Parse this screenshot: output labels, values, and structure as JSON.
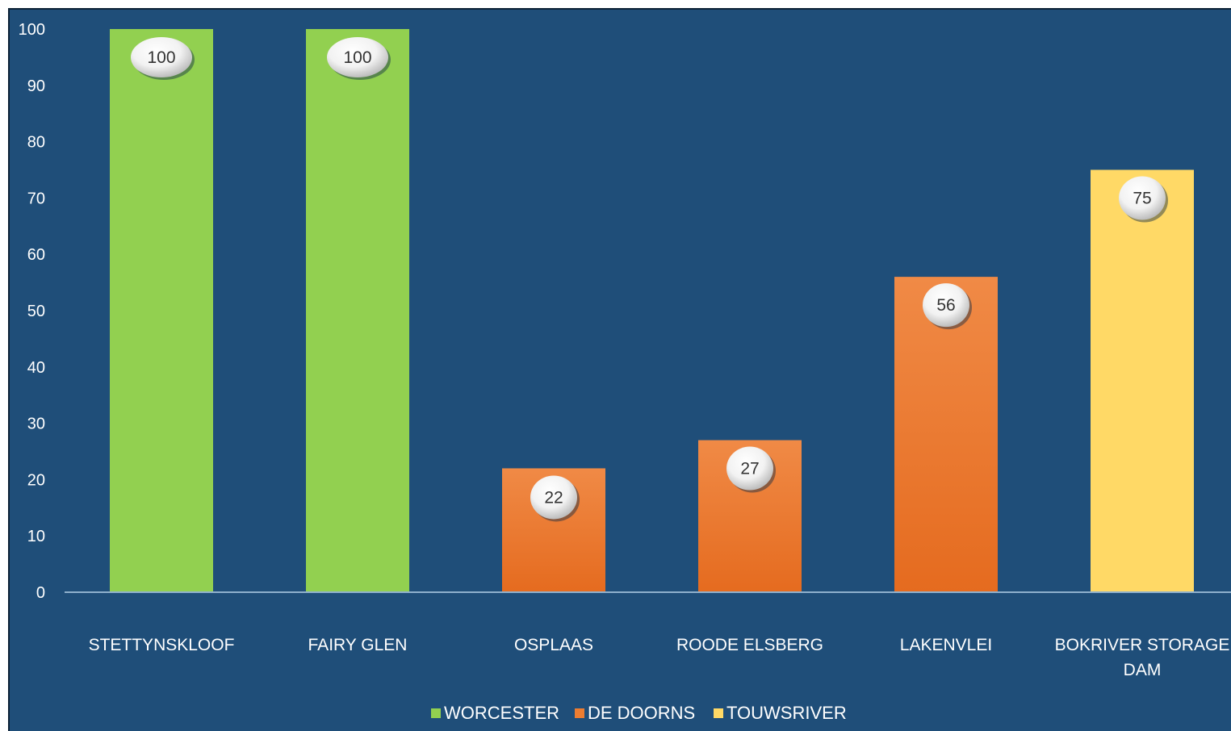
{
  "chart_data": {
    "type": "bar",
    "categories": [
      "STETTYNSKLOOF",
      "FAIRY GLEN",
      "OSPLAAS",
      "ROODE ELSBERG",
      "LAKENVLEI",
      "BOKRIVER STORAGE DAM"
    ],
    "category_lines": [
      [
        "STETTYNSKLOOF"
      ],
      [
        "FAIRY GLEN"
      ],
      [
        "OSPLAAS"
      ],
      [
        "ROODE ELSBERG"
      ],
      [
        "LAKENVLEI"
      ],
      [
        "BOKRIVER STORAGE",
        "DAM"
      ]
    ],
    "values": [
      100,
      100,
      22,
      27,
      56,
      75
    ],
    "data_labels": [
      "100",
      "100",
      "22",
      "27",
      "56",
      "75"
    ],
    "bar_groups": [
      "WORCESTER",
      "WORCESTER",
      "DE DOORNS",
      "DE DOORNS",
      "DE DOORNS",
      "TOUWSRIVER"
    ],
    "series": [
      {
        "name": "WORCESTER",
        "color": "#92d050"
      },
      {
        "name": "DE DOORNS",
        "color": "#ed7d31"
      },
      {
        "name": "TOUWSRIVER",
        "color": "#ffd966"
      }
    ],
    "yticks": [
      "0",
      "10",
      "20",
      "30",
      "40",
      "50",
      "60",
      "70",
      "80",
      "90",
      "100"
    ],
    "ylim": [
      0,
      100
    ],
    "title": "",
    "xlabel": "",
    "ylabel": "",
    "grid": false,
    "legend_position": "bottom",
    "background_color": "#1f4e79"
  }
}
